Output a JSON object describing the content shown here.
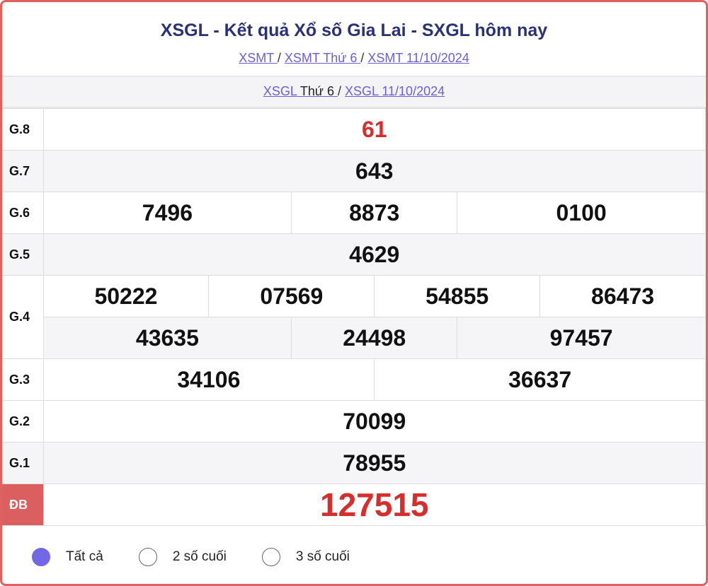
{
  "header": {
    "title": "XSGL - Kết quả Xổ số Gia Lai - SXGL hôm nay",
    "breadcrumb": [
      {
        "label": "XSMT "
      },
      {
        "label": "XSMT Thứ 6 "
      },
      {
        "label": "XSMT 11/10/2024"
      }
    ],
    "sub": {
      "link1": "XSGL",
      "link1_suffix": " Thứ 6 ",
      "link2": "XSGL 11/10/2024"
    }
  },
  "prizes": [
    {
      "label": "G.8",
      "rows": [
        [
          "61"
        ]
      ]
    },
    {
      "label": "G.7",
      "rows": [
        [
          "643"
        ]
      ]
    },
    {
      "label": "G.6",
      "rows": [
        [
          "7496",
          "8873",
          "0100"
        ]
      ]
    },
    {
      "label": "G.5",
      "rows": [
        [
          "4629"
        ]
      ]
    },
    {
      "label": "G.4",
      "rows": [
        [
          "50222",
          "07569",
          "54855",
          "86473"
        ],
        [
          "43635",
          "24498",
          "97457"
        ]
      ]
    },
    {
      "label": "G.3",
      "rows": [
        [
          "34106",
          "36637"
        ]
      ]
    },
    {
      "label": "G.2",
      "rows": [
        [
          "70099"
        ]
      ]
    },
    {
      "label": "G.1",
      "rows": [
        [
          "78955"
        ]
      ]
    },
    {
      "label": "ĐB",
      "rows": [
        [
          "127515"
        ]
      ]
    }
  ],
  "options": [
    {
      "label": "Tất cả",
      "selected": true
    },
    {
      "label": "2 số cuối",
      "selected": false
    },
    {
      "label": "3 số cuối",
      "selected": false
    }
  ],
  "colors": {
    "accent": "#7268e6",
    "red": "#d62d2d",
    "border": "#df6262",
    "title": "#2a3176"
  }
}
